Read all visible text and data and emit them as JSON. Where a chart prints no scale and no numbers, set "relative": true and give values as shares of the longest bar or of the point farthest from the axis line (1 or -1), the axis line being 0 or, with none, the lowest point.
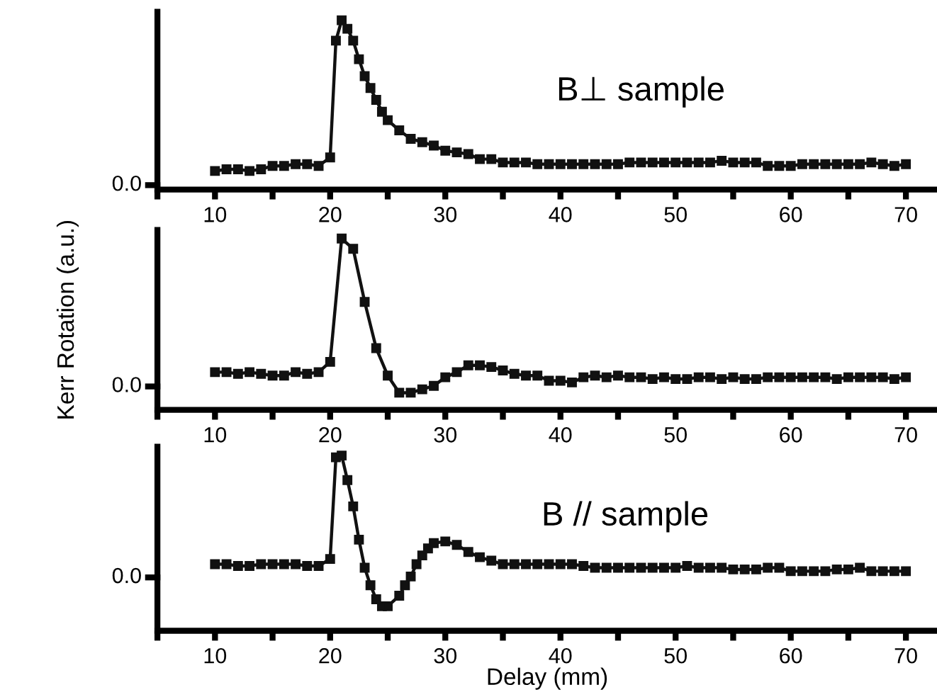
{
  "chart_data": [
    {
      "type": "line",
      "relative": true,
      "marker": "square",
      "line_style": "solid",
      "grid": false,
      "legend": false,
      "annotations": [
        "B⊥ sample",
        "0.0"
      ],
      "xlim": [
        5,
        72.7
      ],
      "xticks": [
        {
          "value": 5,
          "label": null
        },
        10,
        {
          "value": 15,
          "label": null
        },
        20,
        {
          "value": 25,
          "label": null
        },
        30,
        {
          "value": 35,
          "label": null
        },
        40,
        {
          "value": 45,
          "label": null
        },
        50,
        {
          "value": 55,
          "label": null
        },
        60,
        {
          "value": 65,
          "label": null
        },
        70
      ],
      "series": [
        {
          "color": "#111111",
          "x": [
            10,
            11,
            12,
            13,
            14,
            15,
            16,
            17,
            18,
            19,
            20,
            20.5,
            21,
            21.5,
            22,
            22.5,
            23,
            23.5,
            24,
            24.5,
            25,
            26,
            27,
            28,
            29,
            30,
            31,
            32,
            33,
            34,
            35,
            36,
            37,
            38,
            39,
            40,
            41,
            42,
            43,
            44,
            45,
            46,
            47,
            48,
            49,
            50,
            51,
            52,
            53,
            54,
            55,
            56,
            57,
            58,
            59,
            60,
            61,
            62,
            63,
            64,
            65,
            66,
            67,
            68,
            69,
            70
          ],
          "values": [
            0.11,
            0.12,
            0.12,
            0.11,
            0.12,
            0.14,
            0.14,
            0.15,
            0.15,
            0.14,
            0.19,
            0.88,
            1.0,
            0.95,
            0.88,
            0.77,
            0.67,
            0.6,
            0.53,
            0.46,
            0.41,
            0.35,
            0.3,
            0.28,
            0.26,
            0.23,
            0.22,
            0.21,
            0.18,
            0.18,
            0.16,
            0.16,
            0.16,
            0.15,
            0.15,
            0.15,
            0.15,
            0.15,
            0.15,
            0.15,
            0.15,
            0.16,
            0.16,
            0.16,
            0.16,
            0.16,
            0.16,
            0.16,
            0.16,
            0.17,
            0.16,
            0.16,
            0.16,
            0.14,
            0.14,
            0.14,
            0.15,
            0.15,
            0.15,
            0.15,
            0.15,
            0.15,
            0.16,
            0.15,
            0.14,
            0.15
          ]
        }
      ]
    },
    {
      "type": "line",
      "relative": true,
      "marker": "square",
      "line_style": "solid",
      "grid": false,
      "legend": false,
      "ylabel": "Kerr Rotation (a.u.)",
      "annotations": [
        "0.0"
      ],
      "xlim": [
        5,
        72.7
      ],
      "xticks": [
        {
          "value": 5,
          "label": null
        },
        10,
        {
          "value": 15,
          "label": null
        },
        20,
        {
          "value": 25,
          "label": null
        },
        30,
        {
          "value": 35,
          "label": null
        },
        40,
        {
          "value": 45,
          "label": null
        },
        50,
        {
          "value": 55,
          "label": null
        },
        60,
        {
          "value": 65,
          "label": null
        },
        70
      ],
      "series": [
        {
          "color": "#111111",
          "x": [
            10,
            11,
            12,
            13,
            14,
            15,
            16,
            17,
            18,
            19,
            20,
            21,
            22,
            23,
            24,
            25,
            26,
            27,
            28,
            29,
            30,
            31,
            32,
            33,
            34,
            35,
            36,
            37,
            38,
            39,
            40,
            41,
            42,
            43,
            44,
            45,
            46,
            47,
            48,
            49,
            50,
            51,
            52,
            53,
            54,
            55,
            56,
            57,
            58,
            59,
            60,
            61,
            62,
            63,
            64,
            65,
            66,
            67,
            68,
            69,
            70
          ],
          "values": [
            0.22,
            0.22,
            0.21,
            0.22,
            0.21,
            0.2,
            0.2,
            0.22,
            0.21,
            0.22,
            0.28,
            1.0,
            0.94,
            0.63,
            0.36,
            0.2,
            0.1,
            0.1,
            0.12,
            0.14,
            0.19,
            0.22,
            0.26,
            0.26,
            0.25,
            0.23,
            0.21,
            0.2,
            0.2,
            0.17,
            0.17,
            0.16,
            0.19,
            0.2,
            0.19,
            0.2,
            0.19,
            0.19,
            0.18,
            0.19,
            0.18,
            0.18,
            0.19,
            0.19,
            0.18,
            0.19,
            0.18,
            0.18,
            0.19,
            0.19,
            0.19,
            0.19,
            0.19,
            0.19,
            0.18,
            0.19,
            0.19,
            0.19,
            0.19,
            0.18,
            0.19
          ]
        }
      ]
    },
    {
      "type": "line",
      "relative": true,
      "marker": "square",
      "line_style": "solid",
      "grid": false,
      "legend": false,
      "xlabel": "Delay (mm)",
      "annotations": [
        "B // sample",
        "0.0"
      ],
      "xlim": [
        5,
        72.7
      ],
      "xticks": [
        {
          "value": 5,
          "label": null
        },
        10,
        {
          "value": 15,
          "label": null
        },
        20,
        {
          "value": 25,
          "label": null
        },
        30,
        {
          "value": 35,
          "label": null
        },
        40,
        {
          "value": 45,
          "label": null
        },
        50,
        {
          "value": 55,
          "label": null
        },
        60,
        {
          "value": 65,
          "label": null
        },
        70
      ],
      "series": [
        {
          "color": "#111111",
          "x": [
            10,
            11,
            12,
            13,
            14,
            15,
            16,
            17,
            18,
            19,
            20,
            20.5,
            21,
            21.5,
            22,
            22.5,
            23,
            23.5,
            24,
            24.5,
            25,
            26,
            26.5,
            27,
            27.5,
            28,
            28.5,
            29,
            30,
            31,
            32,
            33,
            34,
            35,
            36,
            37,
            38,
            39,
            40,
            41,
            42,
            43,
            44,
            45,
            46,
            47,
            48,
            49,
            50,
            51,
            52,
            53,
            54,
            55,
            56,
            57,
            58,
            59,
            60,
            61,
            62,
            63,
            64,
            65,
            66,
            67,
            68,
            69,
            70
          ],
          "values": [
            0.38,
            0.38,
            0.37,
            0.37,
            0.38,
            0.38,
            0.38,
            0.38,
            0.37,
            0.37,
            0.41,
            0.99,
            1.0,
            0.86,
            0.71,
            0.52,
            0.36,
            0.26,
            0.18,
            0.14,
            0.14,
            0.2,
            0.26,
            0.31,
            0.38,
            0.43,
            0.47,
            0.5,
            0.51,
            0.49,
            0.45,
            0.42,
            0.4,
            0.38,
            0.38,
            0.38,
            0.38,
            0.38,
            0.38,
            0.38,
            0.37,
            0.36,
            0.36,
            0.36,
            0.36,
            0.36,
            0.36,
            0.36,
            0.36,
            0.37,
            0.36,
            0.36,
            0.36,
            0.35,
            0.35,
            0.35,
            0.36,
            0.36,
            0.34,
            0.34,
            0.34,
            0.34,
            0.35,
            0.35,
            0.36,
            0.34,
            0.34,
            0.34,
            0.34
          ]
        }
      ]
    }
  ]
}
